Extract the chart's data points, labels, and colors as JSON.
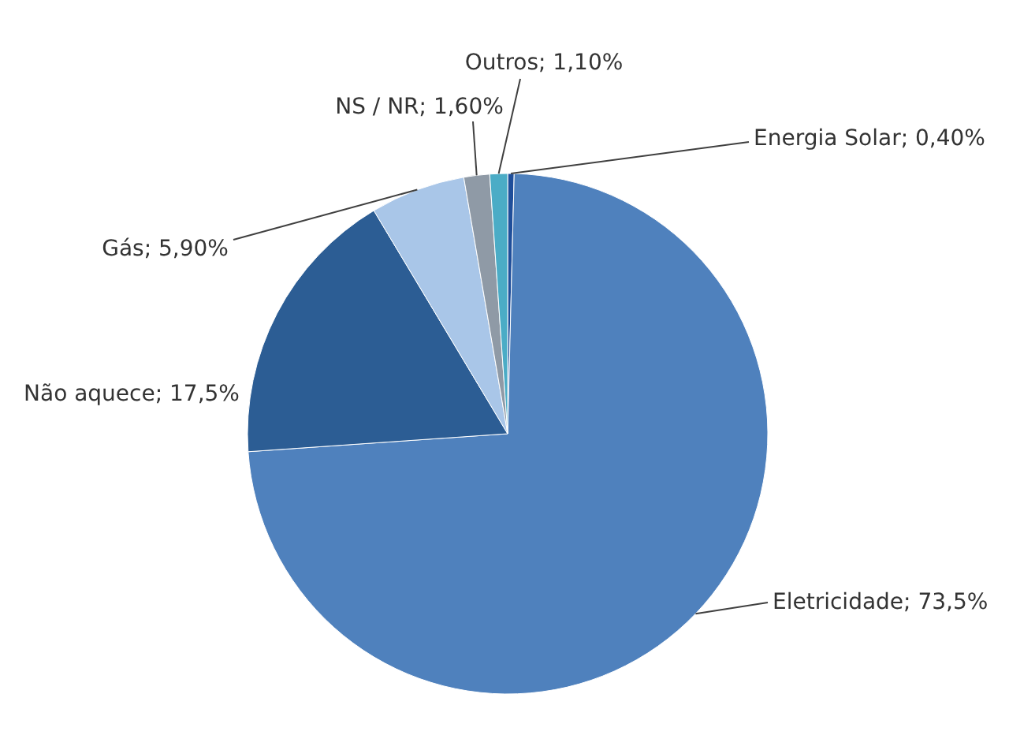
{
  "chart_data": {
    "type": "pie",
    "categories": [
      "Energia Solar",
      "Eletricidade",
      "Não aquece",
      "Gás",
      "NS / NR",
      "Outros"
    ],
    "values": [
      0.4,
      73.5,
      17.5,
      5.9,
      1.6,
      1.1
    ],
    "value_labels": [
      "0,40%",
      "73,5%",
      "17,5%",
      "5,90%",
      "1,60%",
      "1,10%"
    ],
    "colors": [
      "#1f4e9a",
      "#4f81bd",
      "#2c5d94",
      "#a9c6e8",
      "#8f9aa6",
      "#4bacc6"
    ]
  }
}
